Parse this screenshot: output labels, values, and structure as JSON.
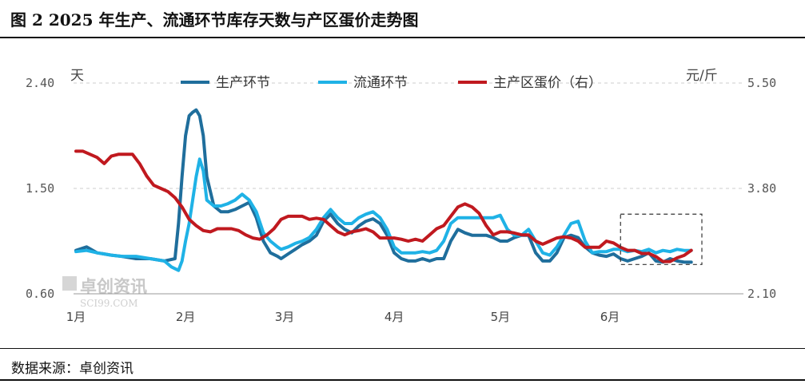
{
  "title": "图 2 2025 年生产、流通环节库存天数与产区蛋价走势图",
  "source": "数据来源：卓创资讯",
  "watermark": {
    "main": "卓创资讯",
    "sub": "SCI99.COM"
  },
  "colors": {
    "production": "#1f6e9c",
    "circulation": "#1fb2e6",
    "price": "#c0191f",
    "grid": "#cccccc",
    "box": "#333333"
  },
  "chart_data": {
    "type": "line",
    "left_axis": {
      "label": "天",
      "ticks": [
        2.4,
        1.5,
        0.6
      ],
      "tick_labels": [
        "2.40",
        "1.50",
        "0.60"
      ],
      "range": [
        0.6,
        2.4
      ]
    },
    "right_axis": {
      "label": "元/斤",
      "ticks": [
        5.5,
        3.8,
        2.1
      ],
      "tick_labels": [
        "5.50",
        "3.80",
        "2.10"
      ],
      "range": [
        2.1,
        5.5
      ]
    },
    "x_labels": [
      "1月",
      "2月",
      "3月",
      "4月",
      "5月",
      "6月"
    ],
    "x_label_positions": [
      1,
      32,
      60,
      91,
      121,
      152
    ],
    "x_range": [
      1,
      178
    ],
    "grid": true,
    "legend_position": "top-center",
    "highlight_box": {
      "x": [
        155,
        178
      ],
      "left_y": [
        0.85,
        1.28
      ]
    },
    "series": [
      {
        "key": "production",
        "name": "生产环节",
        "axis": "left",
        "x": [
          1,
          4,
          7,
          9,
          11,
          14,
          18,
          22,
          26,
          29,
          30,
          31,
          32,
          33,
          34,
          35,
          36,
          37,
          38,
          40,
          42,
          44,
          46,
          48,
          50,
          52,
          54,
          56,
          58,
          59,
          61,
          63,
          65,
          67,
          69,
          71,
          73,
          75,
          77,
          79,
          81,
          83,
          85,
          87,
          89,
          91,
          93,
          95,
          97,
          99,
          101,
          103,
          105,
          107,
          109,
          111,
          113,
          115,
          117,
          119,
          121,
          123,
          125,
          127,
          129,
          131,
          133,
          135,
          137,
          139,
          141,
          143,
          145,
          147,
          149,
          151,
          153,
          155,
          157,
          159,
          161,
          163,
          165,
          167,
          169,
          171,
          173,
          175
        ],
        "y": [
          0.97,
          1.0,
          0.95,
          0.94,
          0.93,
          0.92,
          0.9,
          0.9,
          0.88,
          0.9,
          1.2,
          1.6,
          1.95,
          2.12,
          2.15,
          2.17,
          2.12,
          1.95,
          1.6,
          1.35,
          1.3,
          1.3,
          1.32,
          1.35,
          1.38,
          1.25,
          1.05,
          0.95,
          0.92,
          0.9,
          0.94,
          0.98,
          1.02,
          1.05,
          1.1,
          1.22,
          1.28,
          1.2,
          1.15,
          1.12,
          1.18,
          1.22,
          1.24,
          1.2,
          1.1,
          0.95,
          0.9,
          0.88,
          0.88,
          0.9,
          0.88,
          0.9,
          0.9,
          1.05,
          1.15,
          1.12,
          1.1,
          1.1,
          1.1,
          1.08,
          1.05,
          1.05,
          1.08,
          1.1,
          1.1,
          0.95,
          0.88,
          0.88,
          0.95,
          1.08,
          1.1,
          1.08,
          1.0,
          0.95,
          0.93,
          0.92,
          0.94,
          0.9,
          0.88,
          0.9,
          0.92,
          0.95,
          0.88,
          0.87,
          0.9,
          0.88,
          0.87,
          0.87
        ]
      },
      {
        "key": "circulation",
        "name": "流通环节",
        "axis": "left",
        "x": [
          1,
          4,
          7,
          9,
          11,
          14,
          18,
          22,
          26,
          28,
          30,
          31,
          32,
          33,
          34,
          35,
          36,
          37,
          38,
          40,
          42,
          44,
          46,
          48,
          50,
          52,
          54,
          56,
          58,
          59,
          61,
          63,
          65,
          67,
          69,
          71,
          73,
          75,
          77,
          79,
          81,
          83,
          85,
          87,
          89,
          91,
          93,
          95,
          97,
          99,
          101,
          103,
          105,
          107,
          109,
          111,
          113,
          115,
          117,
          119,
          121,
          123,
          125,
          127,
          129,
          131,
          133,
          135,
          137,
          139,
          141,
          143,
          145,
          147,
          149,
          151,
          153,
          155,
          157,
          159,
          161,
          163,
          165,
          167,
          169,
          171,
          173,
          175
        ],
        "y": [
          0.96,
          0.97,
          0.95,
          0.94,
          0.93,
          0.92,
          0.92,
          0.9,
          0.88,
          0.83,
          0.8,
          0.88,
          1.05,
          1.2,
          1.4,
          1.6,
          1.75,
          1.65,
          1.4,
          1.35,
          1.35,
          1.37,
          1.4,
          1.45,
          1.4,
          1.3,
          1.12,
          1.05,
          1.0,
          0.98,
          1.0,
          1.03,
          1.05,
          1.08,
          1.15,
          1.25,
          1.32,
          1.25,
          1.2,
          1.2,
          1.25,
          1.28,
          1.3,
          1.25,
          1.15,
          1.0,
          0.95,
          0.95,
          0.95,
          0.96,
          0.95,
          0.97,
          1.05,
          1.2,
          1.25,
          1.25,
          1.25,
          1.25,
          1.25,
          1.25,
          1.27,
          1.15,
          1.1,
          1.1,
          1.15,
          1.05,
          0.95,
          0.93,
          1.0,
          1.1,
          1.2,
          1.22,
          1.05,
          0.95,
          0.96,
          0.96,
          0.98,
          0.98,
          0.96,
          0.97,
          0.96,
          0.98,
          0.95,
          0.97,
          0.96,
          0.98,
          0.97,
          0.97
        ]
      },
      {
        "key": "price",
        "name": "主产区蛋价（右）",
        "axis": "right",
        "x": [
          1,
          3,
          5,
          7,
          9,
          11,
          13,
          15,
          17,
          19,
          21,
          23,
          25,
          27,
          29,
          31,
          33,
          35,
          37,
          39,
          41,
          43,
          45,
          47,
          49,
          51,
          53,
          55,
          57,
          59,
          61,
          63,
          65,
          67,
          69,
          71,
          73,
          75,
          77,
          79,
          81,
          83,
          85,
          87,
          89,
          91,
          93,
          95,
          97,
          99,
          101,
          103,
          105,
          107,
          109,
          111,
          113,
          115,
          117,
          119,
          121,
          123,
          125,
          127,
          129,
          131,
          133,
          135,
          137,
          139,
          141,
          143,
          145,
          147,
          149,
          151,
          153,
          155,
          157,
          159,
          161,
          163,
          165,
          167,
          169,
          171,
          173,
          175
        ],
        "y": [
          4.4,
          4.4,
          4.35,
          4.3,
          4.2,
          4.32,
          4.35,
          4.35,
          4.35,
          4.2,
          4.0,
          3.85,
          3.8,
          3.75,
          3.65,
          3.5,
          3.3,
          3.2,
          3.12,
          3.1,
          3.15,
          3.15,
          3.15,
          3.12,
          3.05,
          3.0,
          2.98,
          3.05,
          3.15,
          3.3,
          3.35,
          3.35,
          3.35,
          3.3,
          3.32,
          3.3,
          3.2,
          3.1,
          3.05,
          3.1,
          3.12,
          3.15,
          3.1,
          3.0,
          3.0,
          3.0,
          2.98,
          2.95,
          2.98,
          2.95,
          3.05,
          3.15,
          3.2,
          3.35,
          3.5,
          3.55,
          3.5,
          3.4,
          3.2,
          3.05,
          3.1,
          3.1,
          3.08,
          3.05,
          3.05,
          2.95,
          2.9,
          2.95,
          3.0,
          3.02,
          3.0,
          2.95,
          2.85,
          2.85,
          2.85,
          2.95,
          2.92,
          2.85,
          2.8,
          2.8,
          2.75,
          2.75,
          2.7,
          2.62,
          2.62,
          2.68,
          2.72,
          2.8
        ]
      }
    ]
  }
}
